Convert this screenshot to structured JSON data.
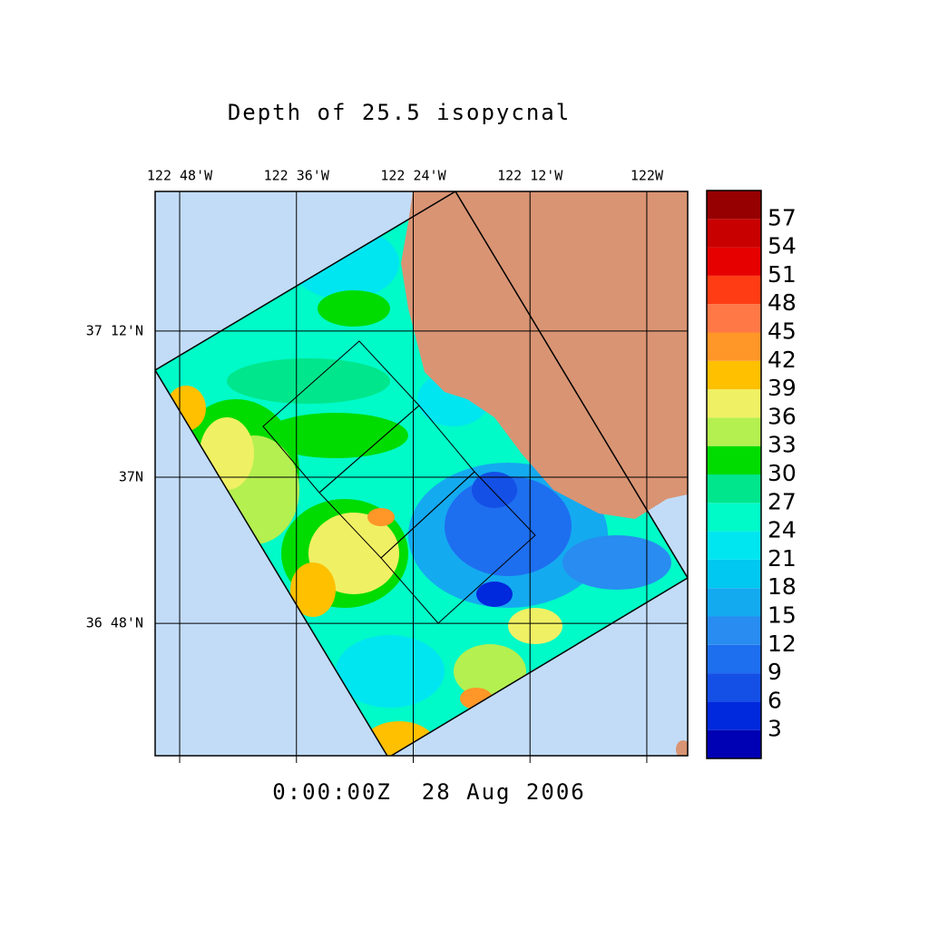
{
  "title": "Depth of 25.5 isopycnal",
  "timestamp": "0:00:00Z  28 Aug 2006",
  "map": {
    "xlim": [
      -122.842,
      -121.93
    ],
    "ylim": [
      36.619,
      37.391
    ],
    "lon_ticks": [
      {
        "value": -122.8,
        "label": "122 48'W"
      },
      {
        "value": -122.6,
        "label": "122 36'W"
      },
      {
        "value": -122.4,
        "label": "122 24'W"
      },
      {
        "value": -122.2,
        "label": "122 12'W"
      },
      {
        "value": -122.0,
        "label": "122W"
      }
    ],
    "lat_ticks": [
      {
        "value": 37.2,
        "label": "37 12'N"
      },
      {
        "value": 37.0,
        "label": "37N"
      },
      {
        "value": 36.8,
        "label": "36 48'N"
      }
    ],
    "grid": true
  },
  "colorbar": {
    "levels": [
      0,
      3,
      6,
      9,
      12,
      15,
      18,
      21,
      24,
      27,
      30,
      33,
      36,
      39,
      42,
      45,
      48,
      51,
      54,
      57,
      60
    ],
    "colors": [
      "#0000b4",
      "#0028dc",
      "#1450e6",
      "#1e6ef0",
      "#288cf0",
      "#14aaf0",
      "#00c8f0",
      "#00e6f0",
      "#00fac8",
      "#00e68c",
      "#00dc00",
      "#b4f050",
      "#f0f064",
      "#ffc000",
      "#ff9628",
      "#ff7846",
      "#ff3c14",
      "#e60000",
      "#c80000",
      "#960000"
    ],
    "ticks": [
      3,
      6,
      9,
      12,
      15,
      18,
      21,
      24,
      27,
      30,
      33,
      36,
      39,
      42,
      45,
      48,
      51,
      54,
      57
    ]
  }
}
